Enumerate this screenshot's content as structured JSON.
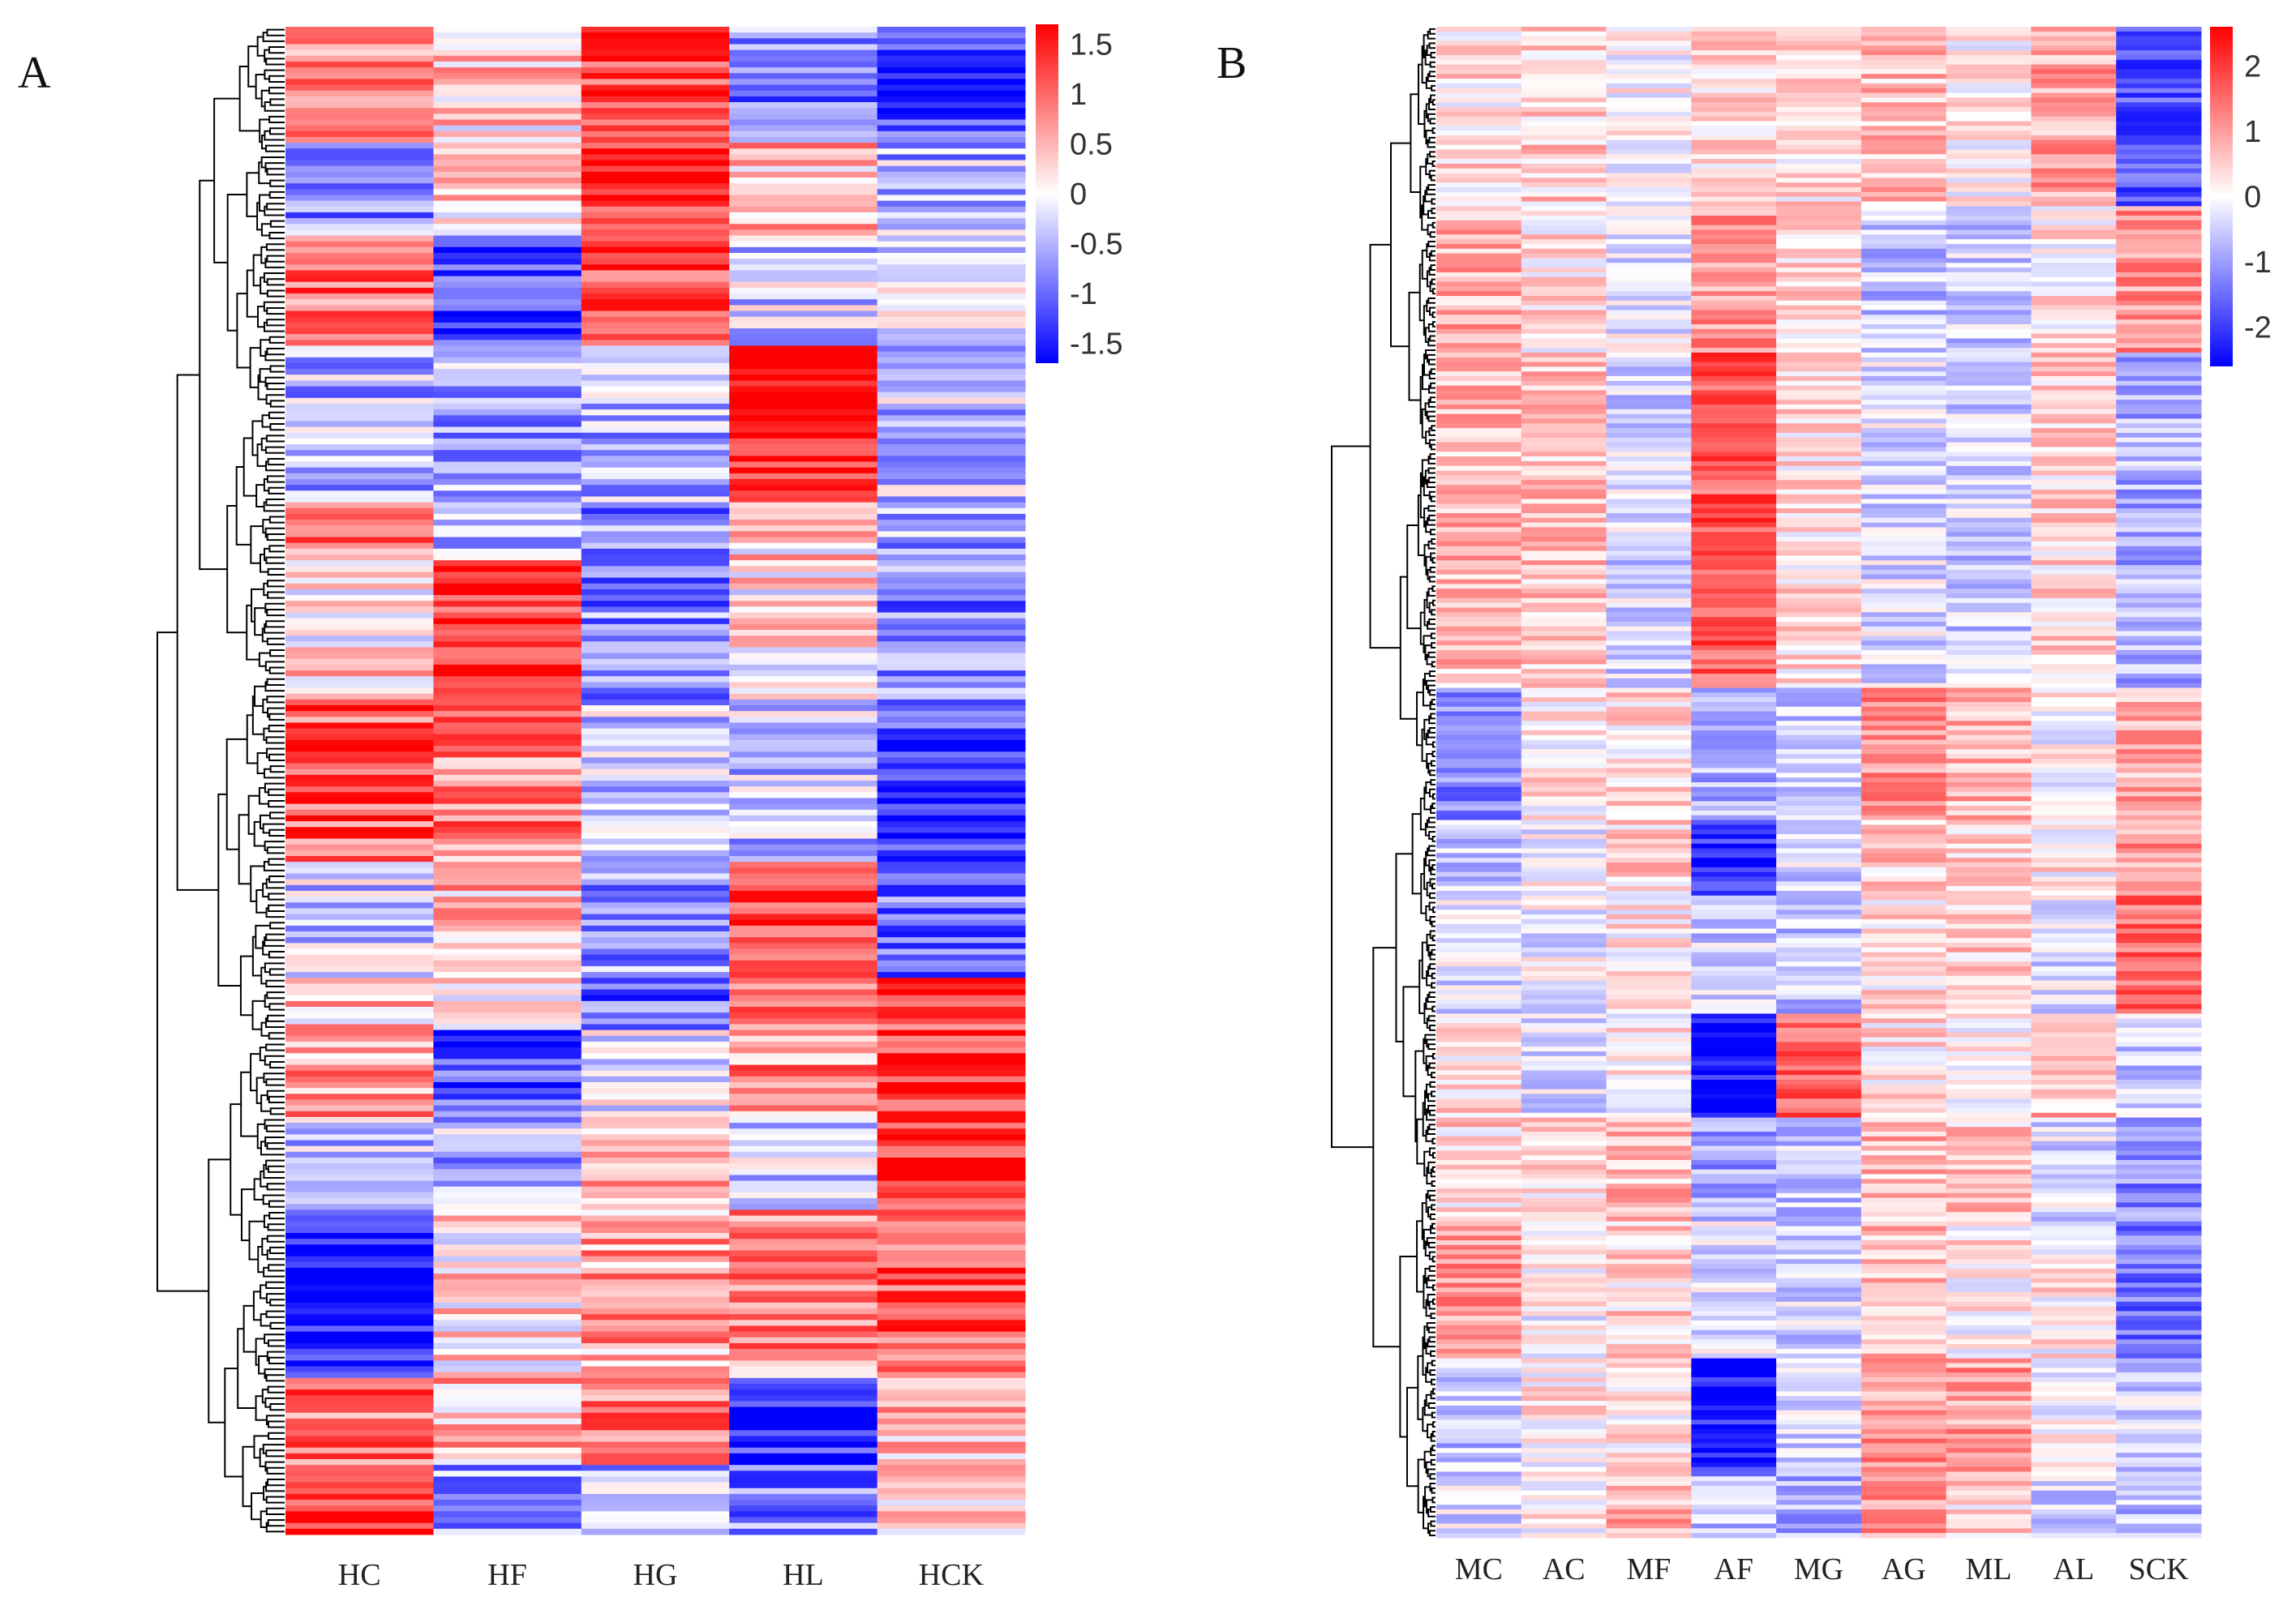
{
  "chart_data": [
    {
      "type": "heatmap",
      "panel_label": "A",
      "columns": [
        "HC",
        "HF",
        "HG",
        "HL",
        "HCK"
      ],
      "colorbar": {
        "min": -1.7,
        "max": 1.7,
        "ticks": [
          "1.5",
          "1",
          "0.5",
          "0",
          "-0.5",
          "-1",
          "-1.5"
        ],
        "tick_values": [
          1.5,
          1,
          0.5,
          0,
          -0.5,
          -1,
          -1.5
        ],
        "low_color": "#0000ff",
        "mid_color": "#ffffff",
        "high_color": "#ff0000"
      },
      "row_dendrogram": true,
      "row_groups": [
        {
          "fraction": 0.075,
          "values": [
            0.8,
            0.3,
            1.2,
            -0.8,
            -1.3
          ]
        },
        {
          "fraction": 0.063,
          "values": [
            -0.8,
            0.2,
            1.5,
            0.5,
            -0.5
          ]
        },
        {
          "fraction": 0.073,
          "values": [
            0.9,
            -1.3,
            1.3,
            -0.3,
            -0.2
          ]
        },
        {
          "fraction": 0.102,
          "values": [
            -0.5,
            -0.6,
            -0.5,
            1.6,
            -0.4
          ]
        },
        {
          "fraction": 0.039,
          "values": [
            0.8,
            -0.5,
            -0.8,
            0.3,
            -0.6
          ]
        },
        {
          "fraction": 0.092,
          "values": [
            0.2,
            1.4,
            -0.8,
            0.2,
            -0.8
          ]
        },
        {
          "fraction": 0.107,
          "values": [
            1.1,
            0.8,
            -0.4,
            -0.4,
            -1.3
          ]
        },
        {
          "fraction": 0.078,
          "values": [
            -0.3,
            0.5,
            -0.7,
            1.4,
            -0.9
          ]
        },
        {
          "fraction": 0.034,
          "values": [
            0.4,
            0.1,
            -1.0,
            0.9,
            1.3
          ]
        },
        {
          "fraction": 0.058,
          "values": [
            0.6,
            -1.2,
            0.0,
            0.7,
            1.2
          ]
        },
        {
          "fraction": 0.063,
          "values": [
            -0.4,
            -0.5,
            0.4,
            -0.3,
            1.5
          ]
        },
        {
          "fraction": 0.112,
          "values": [
            -1.6,
            0.2,
            0.6,
            0.8,
            1.1
          ]
        },
        {
          "fraction": 0.058,
          "values": [
            1.0,
            0.5,
            0.8,
            -1.4,
            0.5
          ]
        },
        {
          "fraction": 0.047,
          "values": [
            1.5,
            -0.6,
            -0.5,
            -0.8,
            0.3
          ]
        }
      ]
    },
    {
      "type": "heatmap",
      "panel_label": "B",
      "columns": [
        "MC",
        "AC",
        "MF",
        "AF",
        "MG",
        "AG",
        "ML",
        "AL",
        "SCK"
      ],
      "colorbar": {
        "min": -2.6,
        "max": 2.6,
        "ticks": [
          "2",
          "1",
          "0",
          "-1",
          "-2"
        ],
        "tick_values": [
          2,
          1,
          0,
          -1,
          -2
        ],
        "low_color": "#0000ff",
        "mid_color": "#ffffff",
        "high_color": "#ff0000"
      },
      "row_dendrogram": true,
      "row_groups": [
        {
          "fraction": 0.118,
          "values": [
            0.3,
            0.5,
            0.1,
            0.4,
            0.3,
            0.6,
            0.2,
            0.9,
            -1.8
          ]
        },
        {
          "fraction": 0.097,
          "values": [
            0.8,
            0.3,
            -0.2,
            1.0,
            0.3,
            -0.6,
            -0.5,
            0.2,
            1.0
          ]
        },
        {
          "fraction": 0.223,
          "values": [
            0.7,
            0.6,
            -0.4,
            1.7,
            0.3,
            -0.3,
            -0.5,
            0.4,
            -0.8
          ]
        },
        {
          "fraction": 0.087,
          "values": [
            -1.2,
            0.2,
            0.3,
            -0.8,
            -0.6,
            1.1,
            0.8,
            0.0,
            0.8
          ]
        },
        {
          "fraction": 0.049,
          "values": [
            -0.6,
            -0.1,
            0.4,
            -2.2,
            -0.4,
            0.5,
            0.4,
            0.2,
            1.0
          ]
        },
        {
          "fraction": 0.078,
          "values": [
            -0.3,
            -0.2,
            0.2,
            -0.5,
            -0.6,
            0.3,
            0.5,
            -0.3,
            1.5
          ]
        },
        {
          "fraction": 0.068,
          "values": [
            0.3,
            -0.4,
            0.2,
            -2.4,
            1.6,
            0.3,
            0.0,
            0.7,
            -0.5
          ]
        },
        {
          "fraction": 0.068,
          "values": [
            0.4,
            0.3,
            0.7,
            -0.9,
            -0.5,
            0.7,
            0.5,
            -0.3,
            -1.2
          ]
        },
        {
          "fraction": 0.092,
          "values": [
            1.0,
            0.0,
            0.4,
            -0.2,
            -0.4,
            0.6,
            0.2,
            0.2,
            -1.4
          ]
        },
        {
          "fraction": 0.078,
          "values": [
            -0.6,
            0.2,
            0.2,
            -2.3,
            -0.3,
            1.0,
            1.0,
            0.0,
            -0.4
          ]
        },
        {
          "fraction": 0.042,
          "values": [
            -0.3,
            0.1,
            0.8,
            -0.6,
            -0.8,
            1.1,
            0.4,
            -0.4,
            -0.6
          ]
        }
      ]
    }
  ]
}
